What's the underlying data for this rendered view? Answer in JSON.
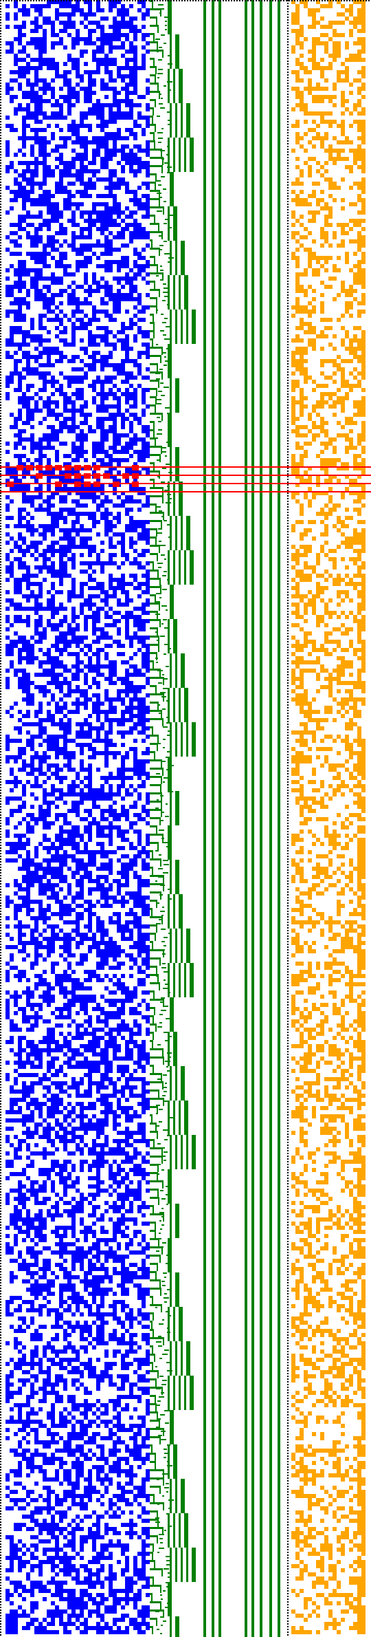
{
  "visualization": {
    "kind": "bit-pattern visualization",
    "panels": [
      {
        "role": "left-noise-panel",
        "color": "#0000ff",
        "fill_density": 0.55
      },
      {
        "role": "middle-bars-panel",
        "color": "#008000"
      },
      {
        "role": "right-noise-panel",
        "color": "#ffa500",
        "fill_density": 0.38
      }
    ],
    "colors": {
      "background": "#ffffff",
      "border_dots": "#000000",
      "highlight": "#ff0000"
    },
    "highlighted_rows": 4
  }
}
